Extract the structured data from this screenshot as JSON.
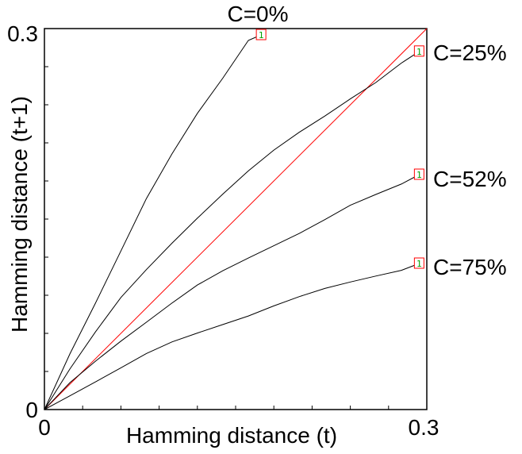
{
  "chart_data": {
    "type": "line",
    "xlabel": "Hamming distance (t)",
    "ylabel": "Hamming distance (t+1)",
    "xlim": [
      0,
      0.3
    ],
    "ylim": [
      0,
      0.3
    ],
    "x_tick_labels": [
      "0",
      "0.3"
    ],
    "y_tick_labels": [
      "0",
      "0.3"
    ],
    "grid": false,
    "colors": {
      "series": "#000000",
      "identity": "#ff0000",
      "marker_border": "#ff0000",
      "marker_text": "#00a000"
    },
    "identity_line": {
      "x": [
        0,
        0.3
      ],
      "y": [
        0,
        0.3
      ]
    },
    "series": [
      {
        "name": "C=0%",
        "marker": "1",
        "x": [
          0,
          0.02,
          0.04,
          0.06,
          0.08,
          0.1,
          0.12,
          0.14,
          0.16,
          0.17
        ],
        "y": [
          0,
          0.045,
          0.085,
          0.125,
          0.165,
          0.2,
          0.233,
          0.262,
          0.292,
          0.295
        ]
      },
      {
        "name": "C=25%",
        "marker": "1",
        "x": [
          0,
          0.02,
          0.04,
          0.06,
          0.08,
          0.1,
          0.12,
          0.14,
          0.16,
          0.18,
          0.2,
          0.22,
          0.24,
          0.26,
          0.28,
          0.294
        ],
        "y": [
          0,
          0.032,
          0.06,
          0.087,
          0.11,
          0.132,
          0.152,
          0.17,
          0.187,
          0.203,
          0.218,
          0.232,
          0.246,
          0.258,
          0.272,
          0.282
        ]
      },
      {
        "name": "C=52%",
        "marker": "1",
        "x": [
          0,
          0.02,
          0.04,
          0.06,
          0.08,
          0.1,
          0.12,
          0.14,
          0.16,
          0.18,
          0.2,
          0.22,
          0.24,
          0.26,
          0.28,
          0.294
        ],
        "y": [
          0,
          0.02,
          0.038,
          0.055,
          0.07,
          0.084,
          0.097,
          0.108,
          0.119,
          0.13,
          0.14,
          0.15,
          0.16,
          0.168,
          0.177,
          0.185
        ]
      },
      {
        "name": "C=75%",
        "marker": "1",
        "x": [
          0,
          0.02,
          0.04,
          0.06,
          0.08,
          0.1,
          0.12,
          0.14,
          0.16,
          0.18,
          0.2,
          0.22,
          0.24,
          0.26,
          0.28,
          0.294
        ],
        "y": [
          0,
          0.012,
          0.023,
          0.033,
          0.043,
          0.052,
          0.06,
          0.068,
          0.075,
          0.082,
          0.088,
          0.094,
          0.1,
          0.106,
          0.111,
          0.115
        ]
      }
    ]
  }
}
